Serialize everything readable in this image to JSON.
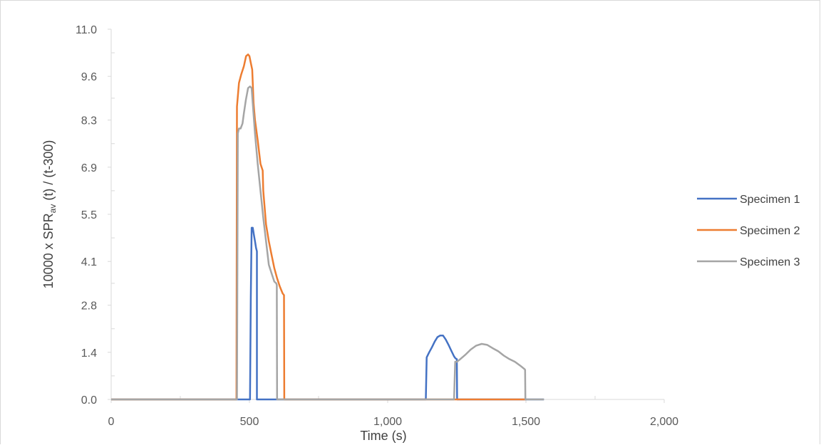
{
  "chart_data": {
    "type": "line",
    "xlabel": "Time (s)",
    "ylabel": {
      "prefix": "10000 x SPR",
      "subscript": "av",
      "suffix": " (t) / (t-300)"
    },
    "xlim": [
      0,
      2000
    ],
    "ylim": [
      0,
      11.0
    ],
    "x_ticks": [
      0,
      500,
      1000,
      1500,
      2000
    ],
    "x_tick_labels": [
      "0",
      "500",
      "1,000",
      "1,500",
      "2,000"
    ],
    "x_minor_ticks": [
      250,
      750,
      1250,
      1750
    ],
    "y_ticks": [
      0.0,
      1.4,
      2.8,
      4.1,
      5.5,
      6.9,
      8.3,
      9.6,
      11.0
    ],
    "y_tick_labels": [
      "0.0",
      "1.4",
      "2.8",
      "4.1",
      "5.5",
      "6.9",
      "8.3",
      "9.6",
      "11.0"
    ],
    "y_minor_ticks": [
      0.7,
      2.1,
      3.45,
      4.8,
      6.2,
      7.6,
      8.95,
      10.3
    ],
    "grid": false,
    "legend_position": "right",
    "series": [
      {
        "name": "Specimen 1",
        "color": "#4472c4",
        "x": [
          0,
          502,
          505,
          508,
          512,
          516,
          520,
          524,
          527,
          527,
          1138,
          1141,
          1150,
          1160,
          1170,
          1180,
          1190,
          1200,
          1210,
          1220,
          1230,
          1240,
          1245,
          1250,
          1251,
          1400,
          1565
        ],
        "y": [
          0,
          0,
          3.0,
          5.1,
          5.1,
          4.9,
          4.7,
          4.5,
          4.4,
          0,
          0,
          1.25,
          1.4,
          1.55,
          1.72,
          1.85,
          1.9,
          1.9,
          1.78,
          1.62,
          1.45,
          1.28,
          1.22,
          1.2,
          0,
          0,
          0
        ]
      },
      {
        "name": "Specimen 2",
        "color": "#ed7d31",
        "x": [
          0,
          453,
          455,
          462,
          470,
          480,
          488,
          495,
          500,
          505,
          510,
          515,
          520,
          530,
          540,
          548,
          550,
          560,
          570,
          580,
          590,
          600,
          610,
          620,
          625,
          626,
          1500
        ],
        "y": [
          0,
          0,
          8.7,
          9.4,
          9.65,
          9.9,
          10.2,
          10.25,
          10.2,
          10.0,
          9.8,
          8.8,
          8.3,
          7.7,
          7.0,
          6.8,
          6.2,
          5.2,
          4.7,
          4.3,
          3.9,
          3.6,
          3.35,
          3.15,
          3.1,
          0,
          0
        ]
      },
      {
        "name": "Specimen 3",
        "color": "#a5a5a5",
        "x": [
          0,
          455,
          458,
          462,
          468,
          475,
          480,
          487,
          495,
          502,
          508,
          513,
          520,
          530,
          540,
          550,
          560,
          570,
          580,
          590,
          597,
          599,
          600,
          1240,
          1244,
          1250,
          1260,
          1280,
          1300,
          1320,
          1340,
          1360,
          1380,
          1400,
          1420,
          1440,
          1460,
          1480,
          1495,
          1497,
          1498,
          1565
        ],
        "y": [
          0,
          0,
          7.9,
          8.05,
          8.05,
          8.2,
          8.5,
          8.9,
          9.25,
          9.3,
          9.25,
          8.7,
          7.9,
          7.0,
          6.2,
          5.4,
          4.7,
          4.0,
          3.75,
          3.5,
          3.45,
          3.4,
          0,
          0,
          1.12,
          1.12,
          1.18,
          1.32,
          1.48,
          1.6,
          1.65,
          1.62,
          1.52,
          1.43,
          1.3,
          1.2,
          1.12,
          1.0,
          0.9,
          0.88,
          0,
          0
        ]
      }
    ]
  }
}
